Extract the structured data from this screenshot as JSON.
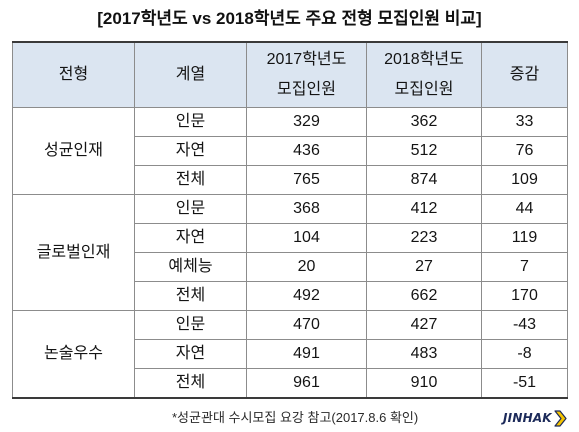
{
  "title": "[2017학년도 vs 2018학년도 주요 전형 모집인원 비교]",
  "table": {
    "headers": {
      "type": "전형",
      "track": "계열",
      "y2017": [
        "2017학년도",
        "모집인원"
      ],
      "y2018": [
        "2018학년도",
        "모집인원"
      ],
      "change": "증감"
    },
    "groups": [
      {
        "name": "성균인재",
        "rows": [
          {
            "track": "인문",
            "y2017": "329",
            "y2018": "362",
            "change": "33"
          },
          {
            "track": "자연",
            "y2017": "436",
            "y2018": "512",
            "change": "76"
          },
          {
            "track": "전체",
            "y2017": "765",
            "y2018": "874",
            "change": "109"
          }
        ]
      },
      {
        "name": "글로벌인재",
        "rows": [
          {
            "track": "인문",
            "y2017": "368",
            "y2018": "412",
            "change": "44"
          },
          {
            "track": "자연",
            "y2017": "104",
            "y2018": "223",
            "change": "119"
          },
          {
            "track": "예체능",
            "y2017": "20",
            "y2018": "27",
            "change": "7"
          },
          {
            "track": "전체",
            "y2017": "492",
            "y2018": "662",
            "change": "170"
          }
        ]
      },
      {
        "name": "논술우수",
        "rows": [
          {
            "track": "인문",
            "y2017": "470",
            "y2018": "427",
            "change": "-43"
          },
          {
            "track": "자연",
            "y2017": "491",
            "y2018": "483",
            "change": "-8"
          },
          {
            "track": "전체",
            "y2017": "961",
            "y2018": "910",
            "change": "-51"
          }
        ]
      }
    ]
  },
  "footnote": "*성균관대 수시모집 요강 참고(2017.8.6 확인)",
  "logo": {
    "text": "JINHAK",
    "icon": "chevron-right-icon"
  },
  "colors": {
    "header_bg": "#DBE5F1",
    "border": "#8C8C8C",
    "rule": "#3A3A3A",
    "logo_text": "#1C2A5A",
    "logo_arrow": "#F5C400"
  }
}
